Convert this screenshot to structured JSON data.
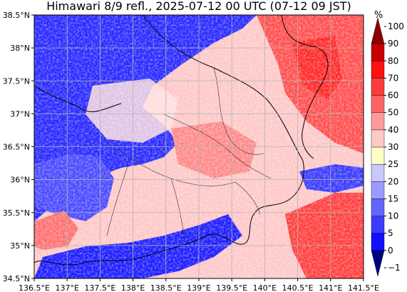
{
  "title": "Himawari 8/9 refl., 2025-07-12 00 UTC (07-12 09 JST)",
  "map": {
    "lon_range": [
      136.5,
      141.5
    ],
    "lat_range": [
      34.5,
      38.5
    ],
    "grid": true,
    "lon_ticks": [
      "136.5°E",
      "137°E",
      "137.5°E",
      "138°E",
      "138.5°E",
      "139°E",
      "139.5°E",
      "140°E",
      "140.5°E",
      "141°E",
      "141.5°E"
    ],
    "lat_ticks": [
      "34.5°N",
      "35°N",
      "35.5°N",
      "36°N",
      "36.5°N",
      "37°N",
      "37.5°N",
      "38°N",
      "38.5°N"
    ],
    "regions": [
      {
        "level": "very-low",
        "pattern": "blue cloud-free land/sea cover over the northwest and coast"
      },
      {
        "level": "low",
        "pattern": "mixed blue and pink over central mountains"
      },
      {
        "level": "high",
        "pattern": "red cloud band in the northeast and southeast sea"
      }
    ]
  },
  "colorbar": {
    "unit": "%",
    "labels": [
      "−1",
      "0",
      "5",
      "10",
      "15",
      "20",
      "25",
      "30",
      "40",
      "50",
      "60",
      "70",
      "80",
      "90",
      "100"
    ],
    "colors": [
      "#00007f",
      "#1010ff",
      "#3c3cff",
      "#6464ff",
      "#9a9aff",
      "#c8c8ff",
      "#ffffc8",
      "#ffc8c8",
      "#ff9a9a",
      "#ff6464",
      "#ff3c3c",
      "#ff1010",
      "#c80000",
      "#8b0000"
    ]
  }
}
